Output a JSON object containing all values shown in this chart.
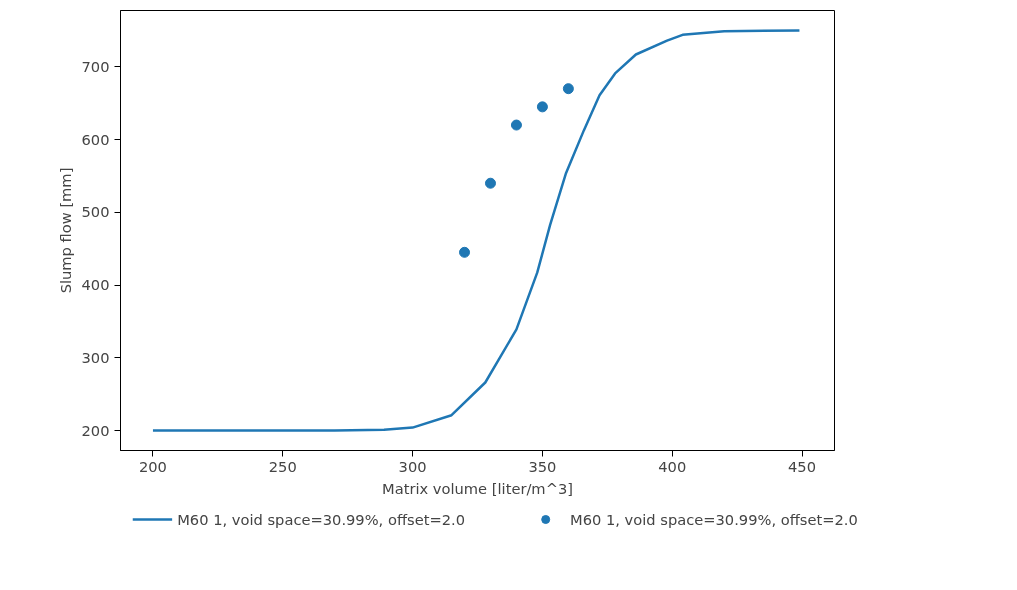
{
  "chart_data": {
    "type": "line",
    "xlabel": "Matrix volume [liter/m^3]",
    "ylabel": "Slump flow [mm]",
    "xlim": [
      187.5,
      462.5
    ],
    "ylim": [
      172.5,
      777.5
    ],
    "xticks": [
      200,
      250,
      300,
      350,
      400,
      450
    ],
    "yticks": [
      200,
      300,
      400,
      500,
      600,
      700
    ],
    "grid": false,
    "legend": "bottom",
    "series": [
      {
        "name": "M60 1, void space=30.99%, offset=2.0",
        "color": "#1f77b4",
        "x": [
          200,
          250,
          270,
          289,
          300,
          315,
          328,
          340,
          348,
          353,
          359,
          366,
          372,
          378,
          386,
          398,
          404,
          420,
          449
        ],
        "values": [
          200,
          200,
          200,
          201,
          204,
          221,
          266,
          339,
          417,
          483,
          553,
          613,
          661,
          691,
          717,
          736,
          744,
          749,
          750
        ]
      },
      {
        "name": "M60 1, void space=30.99%, offset=2.0",
        "type": "scatter",
        "marker": "circle",
        "color": "#1f77b4",
        "x": [
          320,
          330,
          340,
          350,
          360
        ],
        "values": [
          445,
          540,
          620,
          645,
          670
        ]
      }
    ]
  }
}
